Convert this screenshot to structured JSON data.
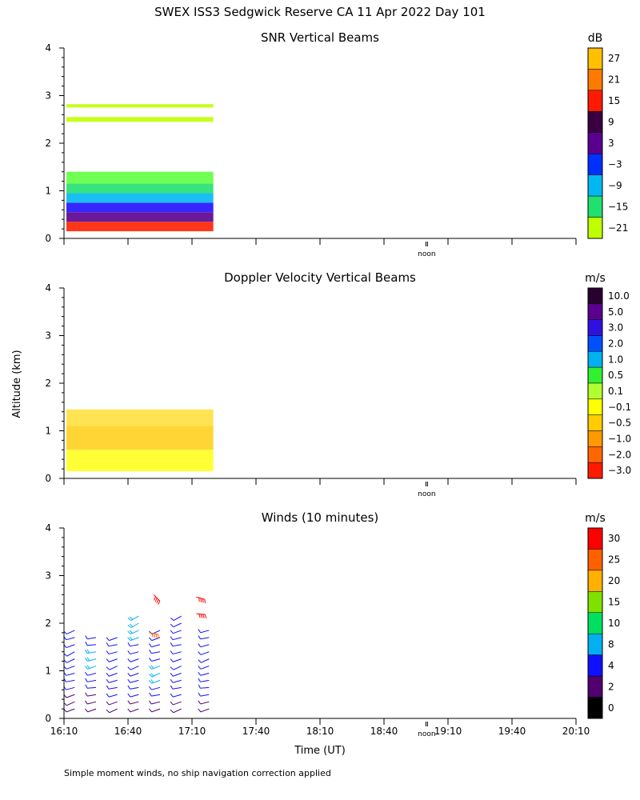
{
  "figure": {
    "title": "SWEX ISS3 Sedgwick Reserve CA  11 Apr 2022 Day 101",
    "footnote": "Simple moment winds, no ship navigation correction applied",
    "shared_ylabel": "Altitude (km)",
    "xlabel": "Time (UT)",
    "noon_label": "noon"
  },
  "chart_data": [
    {
      "type": "heatmap",
      "title": "SNR Vertical Beams",
      "ylabel": "Altitude (km)",
      "ylim": [
        0,
        4
      ],
      "yticks": [
        "0",
        "1",
        "2",
        "3",
        "4"
      ],
      "xlim_minutes": [
        0,
        240
      ],
      "data_extent_minutes": [
        0,
        70
      ],
      "colorbar_unit": "dB",
      "colorbar_labels": [
        "27",
        "21",
        "15",
        "9",
        "3",
        "−3",
        "−9",
        "−15",
        "−21"
      ],
      "colorbar_colors": [
        "#ffc000",
        "#ff7a00",
        "#ff1a00",
        "#3a0040",
        "#5a0090",
        "#0030ff",
        "#00b8f0",
        "#20e070",
        "#c0ff00"
      ],
      "layers": [
        {
          "alt": [
            0.15,
            0.35
          ],
          "color": "#ff2000"
        },
        {
          "alt": [
            0.35,
            0.55
          ],
          "color": "#5a0090"
        },
        {
          "alt": [
            0.55,
            0.75
          ],
          "color": "#2010ff"
        },
        {
          "alt": [
            0.75,
            0.95
          ],
          "color": "#00b8f0"
        },
        {
          "alt": [
            0.95,
            1.15
          ],
          "color": "#20e070"
        },
        {
          "alt": [
            1.15,
            1.4
          ],
          "color": "#60ff40"
        },
        {
          "alt": [
            2.45,
            2.55
          ],
          "color": "#c0ff00"
        },
        {
          "alt": [
            2.75,
            2.82
          ],
          "color": "#c0ff00"
        }
      ]
    },
    {
      "type": "heatmap",
      "title": "Doppler Velocity Vertical Beams",
      "ylabel": "Altitude (km)",
      "ylim": [
        0,
        4
      ],
      "yticks": [
        "0",
        "1",
        "2",
        "3",
        "4"
      ],
      "xlim_minutes": [
        0,
        240
      ],
      "data_extent_minutes": [
        0,
        70
      ],
      "colorbar_unit": "m/s",
      "colorbar_labels": [
        "10.0",
        "5.0",
        "3.0",
        "2.0",
        "1.0",
        "0.5",
        "0.1",
        "−0.1",
        "−0.5",
        "−1.0",
        "−2.0",
        "−3.0"
      ],
      "colorbar_colors": [
        "#2a0030",
        "#5a0090",
        "#3010e0",
        "#0050ff",
        "#00b0f0",
        "#30f030",
        "#b0ff30",
        "#ffff00",
        "#ffcc00",
        "#ff9900",
        "#ff6600",
        "#ff1a00"
      ],
      "layers": [
        {
          "alt": [
            0.15,
            0.6
          ],
          "color": "#ffff20"
        },
        {
          "alt": [
            0.6,
            1.1
          ],
          "color": "#ffd020"
        },
        {
          "alt": [
            1.1,
            1.45
          ],
          "color": "#ffe040"
        }
      ]
    },
    {
      "type": "scatter",
      "title": "Winds (10 minutes)",
      "ylabel": "Altitude (km)",
      "ylim": [
        0,
        4
      ],
      "yticks": [
        "0",
        "1",
        "2",
        "3",
        "4"
      ],
      "xlim_minutes": [
        0,
        240
      ],
      "xtick_labels": [
        "16:10",
        "16:40",
        "17:10",
        "17:40",
        "18:10",
        "18:40",
        "19:10",
        "19:40",
        "20:10"
      ],
      "colorbar_unit": "m/s",
      "colorbar_labels": [
        "30",
        "25",
        "20",
        "15",
        "10",
        "8",
        "4",
        "2",
        "0"
      ],
      "colorbar_colors": [
        "#ff0000",
        "#ff6000",
        "#ffb000",
        "#80e000",
        "#00e060",
        "#00b0f0",
        "#1010ff",
        "#500070",
        "#000000"
      ],
      "wind_profiles": [
        {
          "minutes": 5,
          "alt": [
            0.2,
            0.35,
            0.5,
            0.65,
            0.8,
            0.95,
            1.1,
            1.25,
            1.4,
            1.55,
            1.7,
            1.85
          ],
          "dir": [
            250,
            245,
            250,
            255,
            260,
            255,
            250,
            245,
            240,
            250,
            255,
            245
          ],
          "speed": [
            3,
            3,
            3,
            4,
            4,
            4,
            5,
            6,
            5,
            4,
            4,
            4
          ]
        },
        {
          "minutes": 15,
          "alt": [
            0.2,
            0.35,
            0.5,
            0.65,
            0.8,
            0.95,
            1.1,
            1.25,
            1.4,
            1.55,
            1.7
          ],
          "dir": [
            250,
            255,
            260,
            265,
            260,
            255,
            250,
            255,
            260,
            265,
            260
          ],
          "speed": [
            2,
            3,
            3,
            4,
            4,
            5,
            8,
            9,
            8,
            5,
            4
          ]
        },
        {
          "minutes": 25,
          "alt": [
            0.2,
            0.35,
            0.5,
            0.65,
            0.8,
            0.95,
            1.1,
            1.25,
            1.4,
            1.55,
            1.7
          ],
          "dir": [
            245,
            250,
            255,
            260,
            255,
            250,
            245,
            250,
            255,
            260,
            250
          ],
          "speed": [
            3,
            3,
            4,
            4,
            5,
            5,
            5,
            4,
            4,
            5,
            4
          ]
        },
        {
          "minutes": 35,
          "alt": [
            0.2,
            0.35,
            0.5,
            0.65,
            0.8,
            0.95,
            1.1,
            1.25,
            1.4,
            1.55,
            1.7,
            1.85,
            2.0,
            2.15
          ],
          "dir": [
            250,
            255,
            255,
            260,
            255,
            250,
            245,
            250,
            255,
            260,
            250,
            245,
            240,
            240
          ],
          "speed": [
            3,
            3,
            4,
            4,
            4,
            5,
            5,
            5,
            5,
            6,
            8,
            9,
            9,
            10
          ]
        },
        {
          "minutes": 45,
          "alt": [
            0.2,
            0.35,
            0.5,
            0.65,
            0.8,
            0.95,
            1.1,
            1.25,
            1.4,
            1.55,
            1.7,
            1.85
          ],
          "dir": [
            250,
            255,
            260,
            255,
            250,
            245,
            250,
            255,
            260,
            255,
            250,
            245
          ],
          "speed": [
            3,
            3,
            4,
            4,
            9,
            9,
            8,
            5,
            4,
            4,
            5,
            5
          ]
        },
        {
          "minutes": 55,
          "alt": [
            0.2,
            0.35,
            0.5,
            0.65,
            0.8,
            0.95,
            1.1,
            1.25,
            1.4,
            1.55,
            1.7,
            1.85,
            2.0,
            2.15
          ],
          "dir": [
            245,
            250,
            255,
            260,
            255,
            250,
            245,
            250,
            255,
            260,
            255,
            250,
            245,
            240
          ],
          "speed": [
            3,
            3,
            4,
            4,
            4,
            5,
            5,
            4,
            4,
            5,
            5,
            5,
            5,
            6
          ]
        },
        {
          "minutes": 68,
          "alt": [
            0.2,
            0.35,
            0.5,
            0.65,
            0.8,
            0.95,
            1.1,
            1.25,
            1.4,
            1.55,
            1.7,
            1.85
          ],
          "dir": [
            250,
            255,
            260,
            265,
            260,
            255,
            250,
            245,
            250,
            255,
            260,
            255
          ],
          "speed": [
            3,
            3,
            4,
            4,
            4,
            5,
            5,
            5,
            4,
            4,
            5,
            5
          ]
        },
        {
          "minutes": 42,
          "alt": [
            2.6
          ],
          "dir": [
            135
          ],
          "speed": [
            28
          ]
        },
        {
          "minutes": 62,
          "alt": [
            2.55,
            2.2
          ],
          "dir": [
            105,
            95
          ],
          "speed": [
            28,
            29
          ]
        },
        {
          "minutes": 40,
          "alt": [
            1.8
          ],
          "dir": [
            100
          ],
          "speed": [
            22
          ]
        }
      ]
    }
  ]
}
